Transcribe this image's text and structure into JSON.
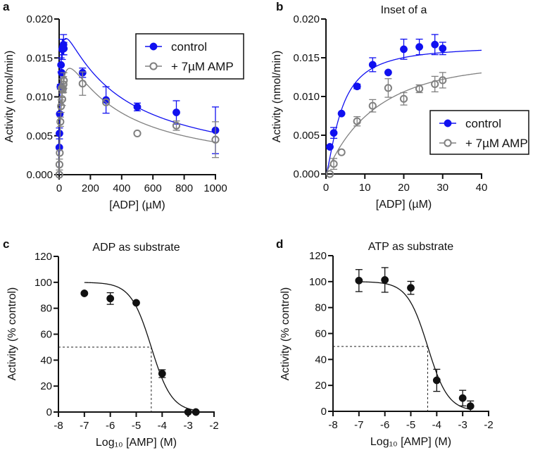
{
  "chart_data": [
    {
      "panel_label": "a",
      "type": "scatter",
      "title": "",
      "xlabel": "[ADP] (µM)",
      "ylabel": "Activity (nmol/min)",
      "xlim": [
        0,
        1000
      ],
      "ylim": [
        0,
        0.02
      ],
      "xticks": [
        "0",
        "200",
        "400",
        "600",
        "800",
        "1000"
      ],
      "yticks": [
        "0.000",
        "0.005",
        "0.010",
        "0.015",
        "0.020"
      ],
      "grid": false,
      "legend_position": "top-right",
      "series": [
        {
          "name": "control",
          "color": "#1010f0",
          "marker": "filled-circle",
          "x": [
            1,
            2,
            4,
            8,
            12,
            16,
            20,
            24,
            28,
            30,
            150,
            300,
            500,
            750,
            1000
          ],
          "y": [
            0.0035,
            0.0053,
            0.0078,
            0.0113,
            0.0141,
            0.0131,
            0.0161,
            0.0164,
            0.0167,
            0.0162,
            0.0131,
            0.0096,
            0.0087,
            0.008,
            0.0057
          ],
          "err": [
            0,
            0.0007,
            0,
            0.0003,
            0.0009,
            0,
            0.0013,
            0.001,
            0.0013,
            0.0008,
            0.0006,
            0.0017,
            0.0005,
            0.0015,
            0.003
          ]
        },
        {
          "name": "+ 7µM AMP",
          "color": "#808080",
          "marker": "open-circle",
          "x": [
            1,
            2,
            4,
            8,
            12,
            16,
            20,
            24,
            28,
            30,
            150,
            300,
            500,
            750,
            1000
          ],
          "y": [
            0.0,
            0.0013,
            0.0028,
            0.0068,
            0.0088,
            0.0111,
            0.0097,
            0.011,
            0.0116,
            0.0121,
            0.0117,
            0.0093,
            0.0053,
            0.0063,
            0.0045
          ],
          "err": [
            0,
            0.0007,
            0,
            0.0006,
            0.0008,
            0.0012,
            0.0008,
            0.0005,
            0.001,
            0.001,
            0.0015,
            0,
            0,
            0.0006,
            0.0023
          ]
        }
      ]
    },
    {
      "panel_label": "b",
      "type": "scatter",
      "title": "Inset of a",
      "xlabel": "[ADP] (µM)",
      "ylabel": "Activity (nmol/min)",
      "xlim": [
        0,
        40
      ],
      "ylim": [
        0,
        0.02
      ],
      "xticks": [
        "0",
        "10",
        "20",
        "30",
        "40"
      ],
      "yticks": [
        "0.000",
        "0.005",
        "0.010",
        "0.015",
        "0.020"
      ],
      "grid": false,
      "legend_position": "bottom-right",
      "series": [
        {
          "name": "control",
          "color": "#1010f0",
          "marker": "filled-circle",
          "x": [
            1,
            2,
            4,
            8,
            12,
            16,
            20,
            24,
            28,
            30
          ],
          "y": [
            0.0035,
            0.0053,
            0.0078,
            0.0113,
            0.0141,
            0.0131,
            0.0161,
            0.0164,
            0.0167,
            0.0162
          ],
          "err": [
            0,
            0.0007,
            0,
            0.0003,
            0.0009,
            0,
            0.0013,
            0.001,
            0.0013,
            0.0008
          ]
        },
        {
          "name": "+ 7µM AMP",
          "color": "#808080",
          "marker": "open-circle",
          "x": [
            1,
            2,
            4,
            8,
            12,
            16,
            20,
            24,
            28,
            30
          ],
          "y": [
            0.0,
            0.0013,
            0.0028,
            0.0068,
            0.0088,
            0.0111,
            0.0097,
            0.011,
            0.0116,
            0.0121
          ],
          "err": [
            0,
            0.0007,
            0,
            0.0006,
            0.0008,
            0.0012,
            0.0008,
            0.0005,
            0.001,
            0.001
          ]
        }
      ]
    },
    {
      "panel_label": "c",
      "type": "scatter",
      "title": "ADP as substrate",
      "xlabel": "Log₁₀ [AMP] (M)",
      "ylabel": "Activity (% control)",
      "xlim": [
        -8,
        -2
      ],
      "ylim": [
        0,
        120
      ],
      "xticks": [
        "-8",
        "-7",
        "-6",
        "-5",
        "-4",
        "-3",
        "-2"
      ],
      "yticks": [
        "0",
        "20",
        "40",
        "60",
        "80",
        "100",
        "120"
      ],
      "grid": false,
      "log_ic50": -4.42,
      "series": [
        {
          "color": "#111111",
          "marker": "filled-circle",
          "x": [
            -7,
            -6,
            -5,
            -4,
            -3,
            -2.7
          ],
          "y": [
            91.5,
            87.5,
            84.2,
            29.6,
            0,
            0
          ],
          "err": [
            0,
            4.5,
            0,
            3,
            0,
            0
          ]
        }
      ]
    },
    {
      "panel_label": "d",
      "type": "scatter",
      "title": "ATP as substrate",
      "xlabel": "Log₁₀ [AMP] (M)",
      "ylabel": "Activity (% control)",
      "xlim": [
        -8,
        -2
      ],
      "ylim": [
        0,
        120
      ],
      "xticks": [
        "-8",
        "-7",
        "-6",
        "-5",
        "-4",
        "-3",
        "-2"
      ],
      "yticks": [
        "0",
        "20",
        "40",
        "60",
        "80",
        "100",
        "120"
      ],
      "grid": false,
      "log_ic50": -4.35,
      "series": [
        {
          "color": "#111111",
          "marker": "filled-circle",
          "x": [
            -7,
            -6,
            -5,
            -4,
            -3,
            -2.7
          ],
          "y": [
            100.8,
            101.3,
            95.2,
            23.9,
            10.2,
            4.0
          ],
          "err": [
            8.5,
            9.5,
            5,
            8.5,
            6,
            4
          ]
        }
      ]
    }
  ]
}
